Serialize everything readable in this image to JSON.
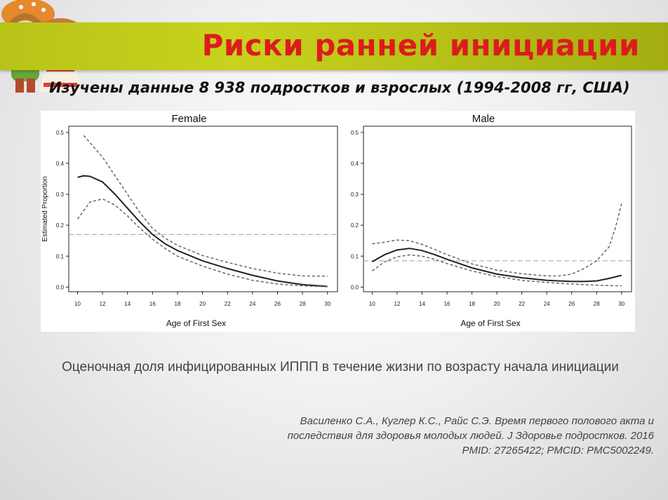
{
  "slide": {
    "title": "Риски ранней инициации",
    "subtitle": "Изучены данные 8 938 подростков и взрослых (1994-2008 гг, США)",
    "caption": "Оценочная доля инфицированных ИППП в течение жизни по возрасту начала инициации",
    "reference": [
      "Василенко С.А., Куглер К.С., Райс С.Э. Время первого полового акта и",
      "последствия для здоровья молодых людей. J Здоровье подростков. 2016",
      "PMID: 27265422; PMCID: PMC5002249."
    ]
  },
  "colors": {
    "title": "#dc1c1c",
    "band": "#bfcb1a",
    "estimate": "#222222",
    "ci": "#666666",
    "reference_line": "#aaaaaa"
  },
  "chart_data": [
    {
      "type": "line",
      "title": "Female",
      "xlabel": "Age of First Sex",
      "ylabel": "Estimated Proportion",
      "xlim": [
        9.3,
        30.8
      ],
      "ylim": [
        -0.015,
        0.52
      ],
      "xticks": [
        "10",
        "12",
        "14",
        "16",
        "18",
        "20",
        "22",
        "24",
        "26",
        "28",
        "30"
      ],
      "yticks": [
        "0.0",
        "0.1",
        "0.2",
        "0.3",
        "0.4",
        "0.5"
      ],
      "reference_y": 0.17,
      "series": [
        {
          "style": "solid",
          "x": [
            10,
            10.5,
            11,
            12,
            13,
            14,
            15,
            16,
            17,
            18,
            20,
            22,
            24,
            26,
            28,
            30
          ],
          "y": [
            0.355,
            0.36,
            0.358,
            0.34,
            0.3,
            0.255,
            0.21,
            0.17,
            0.14,
            0.118,
            0.085,
            0.06,
            0.038,
            0.02,
            0.008,
            0.002
          ]
        },
        {
          "style": "dashed",
          "x": [
            10.5,
            12,
            13,
            14,
            15,
            16,
            17,
            18,
            20,
            22,
            24,
            26,
            28,
            30
          ],
          "y": [
            0.49,
            0.42,
            0.36,
            0.3,
            0.24,
            0.19,
            0.158,
            0.135,
            0.102,
            0.08,
            0.06,
            0.045,
            0.036,
            0.035
          ]
        },
        {
          "style": "dashed",
          "x": [
            10,
            11,
            12,
            13,
            14,
            15,
            16,
            17,
            18,
            20,
            22,
            24,
            26,
            28,
            30
          ],
          "y": [
            0.22,
            0.275,
            0.285,
            0.265,
            0.23,
            0.19,
            0.155,
            0.125,
            0.1,
            0.068,
            0.042,
            0.022,
            0.01,
            0.004,
            0.001
          ]
        }
      ]
    },
    {
      "type": "line",
      "title": "Male",
      "xlabel": "Age of First Sex",
      "ylabel": "",
      "xlim": [
        9.3,
        30.8
      ],
      "ylim": [
        -0.015,
        0.52
      ],
      "xticks": [
        "10",
        "12",
        "14",
        "16",
        "18",
        "20",
        "22",
        "24",
        "26",
        "28",
        "30"
      ],
      "yticks": [
        "0.0",
        "0.1",
        "0.2",
        "0.3",
        "0.4",
        "0.5"
      ],
      "reference_y": 0.085,
      "series": [
        {
          "style": "solid",
          "x": [
            10,
            11,
            12,
            13,
            14,
            15,
            16,
            18,
            20,
            22,
            24,
            26,
            27,
            28,
            29,
            30
          ],
          "y": [
            0.082,
            0.105,
            0.12,
            0.125,
            0.118,
            0.105,
            0.09,
            0.062,
            0.042,
            0.03,
            0.022,
            0.018,
            0.018,
            0.02,
            0.028,
            0.038
          ]
        },
        {
          "style": "dashed",
          "x": [
            10,
            11,
            12,
            13,
            14,
            15,
            16,
            18,
            20,
            22,
            24,
            25,
            26,
            27,
            28,
            29,
            29.5,
            30
          ],
          "y": [
            0.14,
            0.145,
            0.152,
            0.15,
            0.138,
            0.122,
            0.105,
            0.075,
            0.055,
            0.043,
            0.036,
            0.036,
            0.042,
            0.06,
            0.085,
            0.13,
            0.19,
            0.27
          ]
        },
        {
          "style": "dashed",
          "x": [
            10,
            11,
            12,
            13,
            14,
            15,
            16,
            18,
            20,
            22,
            24,
            26,
            28,
            30
          ],
          "y": [
            0.052,
            0.082,
            0.098,
            0.104,
            0.1,
            0.09,
            0.076,
            0.052,
            0.034,
            0.022,
            0.015,
            0.01,
            0.006,
            0.004
          ]
        }
      ]
    }
  ]
}
